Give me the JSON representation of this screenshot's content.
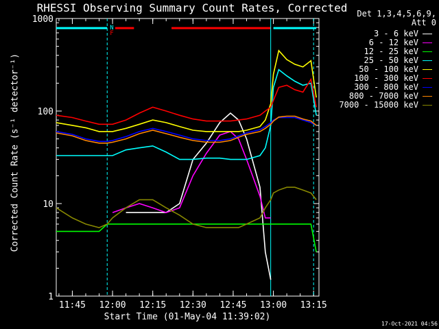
{
  "title": "RHESSI Observing Summary Count Rates, Corrected",
  "xlabel": "Start Time (01-May-04 11:39:02)",
  "ylabel": "Corrected Count Rate (s⁻¹ detector⁻¹)",
  "footer_date": "17-Oct-2021 04:56",
  "legend_header": [
    "Det 1,3,4,5,6,9,",
    "Att 0"
  ],
  "flags": [
    "N",
    "F"
  ],
  "chart_data": {
    "type": "line",
    "xaxis": {
      "unit": "time",
      "ticks": [
        "11:45",
        "12:00",
        "12:15",
        "12:30",
        "12:45",
        "13:00",
        "13:15"
      ]
    },
    "yaxis": {
      "scale": "log",
      "range": [
        1,
        1000
      ],
      "ticks": [
        "1",
        "10",
        "100",
        "1000"
      ]
    },
    "x": [
      "11:39",
      "11:45",
      "11:50",
      "11:55",
      "11:58",
      "12:00",
      "12:05",
      "12:10",
      "12:15",
      "12:20",
      "12:25",
      "12:30",
      "12:35",
      "12:40",
      "12:44",
      "12:47",
      "12:50",
      "12:55",
      "12:57",
      "12:59",
      "13:00",
      "13:02",
      "13:05",
      "13:08",
      "13:11",
      "13:14",
      "13:16"
    ],
    "series": [
      {
        "name": "3 - 6 keV",
        "color": "#ffffff",
        "values": [
          null,
          null,
          null,
          null,
          null,
          null,
          8,
          8,
          8,
          8,
          10,
          30,
          45,
          75,
          95,
          80,
          50,
          15,
          3,
          1.5,
          null,
          null,
          null,
          null,
          null,
          null,
          null
        ]
      },
      {
        "name": "6 - 12 keV",
        "color": "#ff00ff",
        "values": [
          null,
          null,
          null,
          null,
          null,
          8,
          9,
          10,
          9,
          8,
          9,
          20,
          35,
          55,
          60,
          50,
          30,
          12,
          7,
          7,
          null,
          null,
          null,
          null,
          null,
          null,
          null
        ]
      },
      {
        "name": "12 - 25 keV",
        "color": "#00ff00",
        "values": [
          5,
          5,
          5,
          5,
          6,
          6,
          6,
          6,
          6,
          6,
          6,
          6,
          6,
          6,
          6,
          6,
          6,
          6,
          6,
          6,
          6,
          6,
          6,
          6,
          6,
          6,
          3
        ]
      },
      {
        "name": "25 - 50 keV",
        "color": "#00ffff",
        "values": [
          33,
          33,
          33,
          33,
          33,
          33,
          38,
          40,
          42,
          36,
          30,
          30,
          31,
          31,
          30,
          30,
          30,
          33,
          40,
          70,
          180,
          280,
          240,
          210,
          190,
          200,
          90
        ]
      },
      {
        "name": "50 - 100 keV",
        "color": "#ffff00",
        "values": [
          75,
          70,
          66,
          60,
          60,
          60,
          65,
          72,
          80,
          75,
          68,
          62,
          60,
          60,
          60,
          60,
          62,
          68,
          80,
          120,
          250,
          450,
          360,
          320,
          300,
          350,
          140
        ]
      },
      {
        "name": "100 - 300 keV",
        "color": "#ff0000",
        "values": [
          90,
          85,
          78,
          72,
          72,
          72,
          80,
          95,
          110,
          100,
          90,
          82,
          78,
          78,
          78,
          80,
          82,
          90,
          100,
          110,
          130,
          180,
          190,
          170,
          160,
          220,
          110
        ]
      },
      {
        "name": "300 - 800 keV",
        "color": "#0000ff",
        "values": [
          60,
          56,
          50,
          47,
          47,
          48,
          53,
          60,
          65,
          60,
          55,
          50,
          48,
          48,
          50,
          54,
          58,
          63,
          68,
          75,
          80,
          85,
          85,
          85,
          80,
          75,
          70
        ]
      },
      {
        "name": "800 - 7000 keV",
        "color": "#ff8800",
        "values": [
          58,
          54,
          48,
          45,
          45,
          46,
          50,
          57,
          62,
          57,
          52,
          48,
          46,
          46,
          48,
          52,
          56,
          60,
          65,
          72,
          78,
          86,
          88,
          88,
          82,
          78,
          70
        ]
      },
      {
        "name": "7000 - 15000 keV",
        "color": "#888800",
        "values": [
          9,
          7,
          6,
          5.5,
          6,
          7,
          9,
          11,
          11,
          9,
          7.5,
          6,
          5.5,
          5.5,
          5.5,
          5.5,
          6,
          7,
          9,
          11,
          13,
          14,
          15,
          15,
          14,
          13,
          11
        ]
      }
    ],
    "grid": false,
    "legend_position": "right"
  }
}
